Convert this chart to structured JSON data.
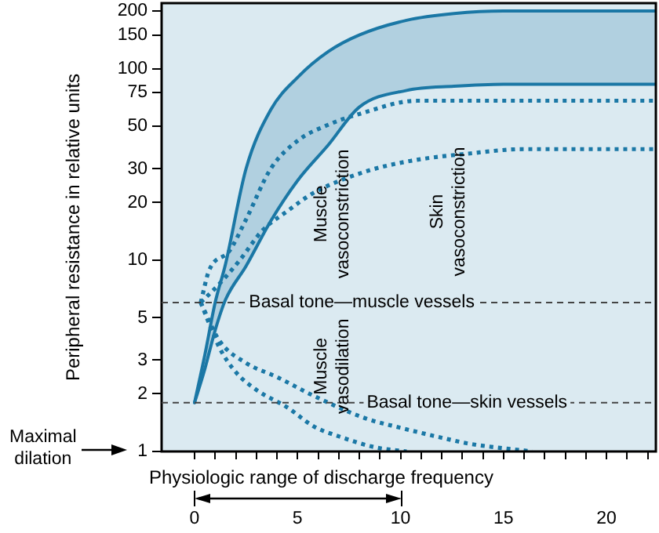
{
  "chart_data": {
    "type": "line",
    "xlabel": "Physiologic range of discharge frequency",
    "ylabel": "Peripheral resistance in relative units",
    "log": "y",
    "grid": false,
    "legend": false,
    "marker": "none",
    "xlim": [
      -1.6,
      22.4
    ],
    "ylim": [
      1,
      220
    ],
    "xticks": [
      {
        "value": 0,
        "label": "0"
      },
      {
        "value": 1,
        "label": null
      },
      {
        "value": 2,
        "label": null
      },
      {
        "value": 3,
        "label": null
      },
      {
        "value": 4,
        "label": null
      },
      {
        "value": 5,
        "label": "5"
      },
      {
        "value": 6,
        "label": null
      },
      {
        "value": 7,
        "label": null
      },
      {
        "value": 8,
        "label": null
      },
      {
        "value": 9,
        "label": null
      },
      {
        "value": 10,
        "label": "10"
      },
      {
        "value": 11,
        "label": null
      },
      {
        "value": 12,
        "label": null
      },
      {
        "value": 13,
        "label": null
      },
      {
        "value": 14,
        "label": null
      },
      {
        "value": 15,
        "label": "15"
      },
      {
        "value": 16,
        "label": null
      },
      {
        "value": 17,
        "label": null
      },
      {
        "value": 18,
        "label": null
      },
      {
        "value": 19,
        "label": null
      },
      {
        "value": 20,
        "label": "20"
      },
      {
        "value": 21,
        "label": null
      },
      {
        "value": 22,
        "label": null
      }
    ],
    "yticks": [
      1,
      2,
      3,
      5,
      10,
      20,
      30,
      50,
      75,
      100,
      150,
      200
    ],
    "series": [
      {
        "color": "#1b78a6",
        "line_style": "solid",
        "x": [
          0,
          0.5,
          1,
          1.5,
          2.5,
          3.7,
          5,
          6.5,
          8,
          10.3,
          12.6,
          15,
          18,
          22.4
        ],
        "values": [
          1.8,
          3.2,
          6,
          9.5,
          30,
          61,
          90,
          123,
          150,
          179,
          194,
          200,
          200,
          200
        ],
        "lower": [
          1.8,
          2.7,
          4.3,
          6.2,
          9.3,
          16,
          26,
          40,
          63,
          77,
          81,
          83,
          83,
          83
        ],
        "upper": [
          1.8,
          3.2,
          6,
          9.5,
          30,
          61,
          90,
          123,
          150,
          179,
          194,
          200,
          200,
          200
        ]
      },
      {
        "color": "#1b78a6",
        "line_style": "solid",
        "x": [
          0,
          0.5,
          1,
          1.5,
          2.5,
          3.7,
          5,
          6.5,
          8,
          10.3,
          12.6,
          15,
          18,
          22.4
        ],
        "values": [
          1.8,
          2.7,
          4.3,
          6.2,
          9.3,
          16,
          26,
          40,
          63,
          77,
          81,
          83,
          83,
          83
        ]
      },
      {
        "color": "#1b78a6",
        "line_style": "dotted",
        "x": [
          0.3,
          0.7,
          1.7,
          2.5,
          3.7,
          5,
          6.5,
          8,
          10.8,
          14,
          22.4
        ],
        "values": [
          6,
          8.8,
          11.2,
          16.3,
          30,
          42,
          51,
          58,
          68,
          68,
          68
        ]
      },
      {
        "color": "#1b78a6",
        "line_style": "dotted",
        "x": [
          0.3,
          1.2,
          2.2,
          3.3,
          4.5,
          5.8,
          8.3,
          10.5,
          13.3,
          16,
          22.4
        ],
        "values": [
          6,
          7.5,
          10,
          14.3,
          18,
          22.5,
          29,
          33,
          36,
          38,
          38
        ]
      },
      {
        "color": "#1b78a6",
        "line_style": "dotted",
        "x": [
          0.3,
          1.2,
          2.5,
          4,
          5.8,
          8.3,
          10,
          12,
          13.3,
          16.4
        ],
        "values": [
          6,
          3.8,
          2.9,
          2.45,
          1.95,
          1.49,
          1.33,
          1.18,
          1.1,
          1.0
        ]
      },
      {
        "color": "#1b78a6",
        "line_style": "dotted",
        "x": [
          0.3,
          1.2,
          2,
          3,
          4.5,
          5.8,
          7,
          8.8,
          10.3
        ],
        "values": [
          6,
          3.5,
          2.6,
          2.1,
          1.7,
          1.35,
          1.2,
          1.05,
          1.0
        ]
      }
    ],
    "ref_lines": [
      {
        "axis": "y",
        "value": 6,
        "label": "Basal tone—muscle vessels",
        "color": "#444444",
        "line_style": "dashed"
      },
      {
        "axis": "y",
        "value": 1.8,
        "label": "Basal tone—skin vessels",
        "color": "#444444",
        "line_style": "dashed"
      }
    ],
    "annotations": [
      "Muscle\nvasoconstriction",
      "Skin\nvasoconstriction",
      "Muscle\nvasodilation",
      "Maximal\ndilation"
    ]
  }
}
